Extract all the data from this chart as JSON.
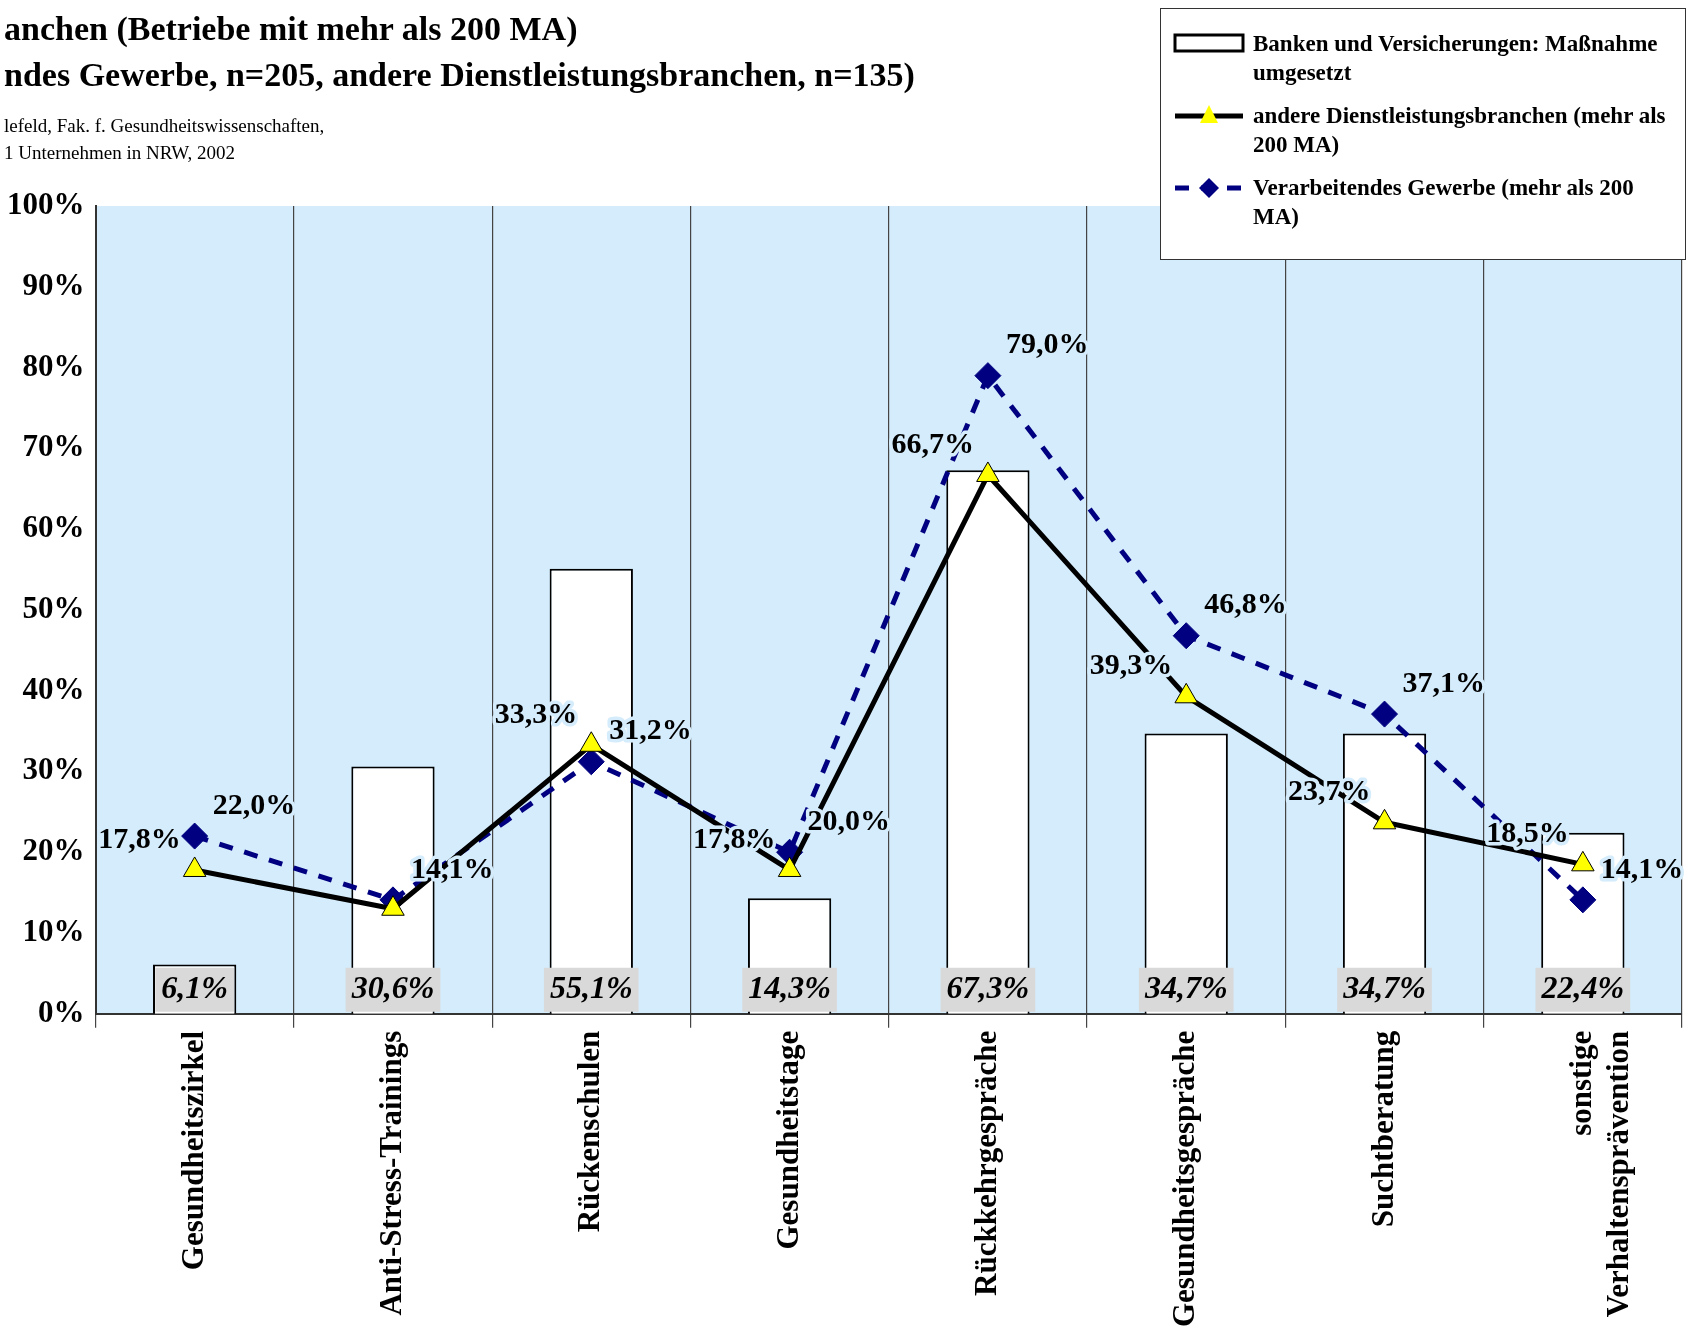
{
  "chart_data": {
    "type": "bar",
    "title": "anchen (Betriebe mit mehr als 200 MA)\nndes Gewerbe, n=205, andere Dienstleistungsbranchen, n=135)",
    "annotations": [
      "lefeld, Fak. f. Gesundheitswissenschaften,\n1 Unternehmen in NRW, 2002"
    ],
    "categories": [
      "Gesundheitszirkel",
      "Anti-Stress-Trainings",
      "Rückenschulen",
      "Gesundheitstage",
      "Rückkehrgespräche",
      "Gesundheitsgespräche",
      "Suchtberatung",
      "sonstige\nVerhaltensprävention"
    ],
    "series": [
      {
        "name": "Banken und Versicherungen: Maßnahme umgesetzt",
        "color": "#ffffff",
        "values": [
          6.1,
          30.6,
          55.1,
          14.3,
          67.3,
          34.7,
          34.7,
          22.4
        ],
        "value_labels": [
          "6,1%",
          "30,6%",
          "55,1%",
          "14,3%",
          "67,3%",
          "34,7%",
          "34,7%",
          "22,4%"
        ]
      },
      {
        "name": "andere Dienstleistungsbranchen (mehr als 200 MA)",
        "type": "line",
        "color": "#000000",
        "marker": "triangle",
        "line_style": "solid",
        "values": [
          17.8,
          13,
          33.3,
          17.8,
          66.7,
          39.3,
          23.7,
          18.5
        ],
        "value_labels": [
          "17,8%",
          null,
          "33,3%",
          "17,8%",
          "66,7%",
          "39,3%",
          "23,7%",
          "18,5%"
        ]
      },
      {
        "name": "Verarbeitendes Gewerbe (mehr als 200 MA)",
        "type": "line",
        "color": "#000080",
        "marker": "diamond",
        "line_style": "dashed",
        "values": [
          22.0,
          14.1,
          31.2,
          20.0,
          79.0,
          46.8,
          37.1,
          14.1
        ],
        "value_labels": [
          "22,0%",
          "14,1%",
          "31,2%",
          "20,0%",
          "79,0%",
          "46,8%",
          "37,1%",
          "14,1%"
        ]
      }
    ],
    "ylim": [
      0,
      100
    ],
    "yticks": [
      {
        "value": 0,
        "label": "0%"
      },
      {
        "value": 10,
        "label": "10%"
      },
      {
        "value": 20,
        "label": "20%"
      },
      {
        "value": 30,
        "label": "30%"
      },
      {
        "value": 40,
        "label": "40%"
      },
      {
        "value": 50,
        "label": "50%"
      },
      {
        "value": 60,
        "label": "60%"
      },
      {
        "value": 70,
        "label": "70%"
      },
      {
        "value": 80,
        "label": "80%"
      },
      {
        "value": 90,
        "label": "90%"
      },
      {
        "value": 100,
        "label": "100%"
      }
    ],
    "grid": "x",
    "legend": "top right"
  }
}
